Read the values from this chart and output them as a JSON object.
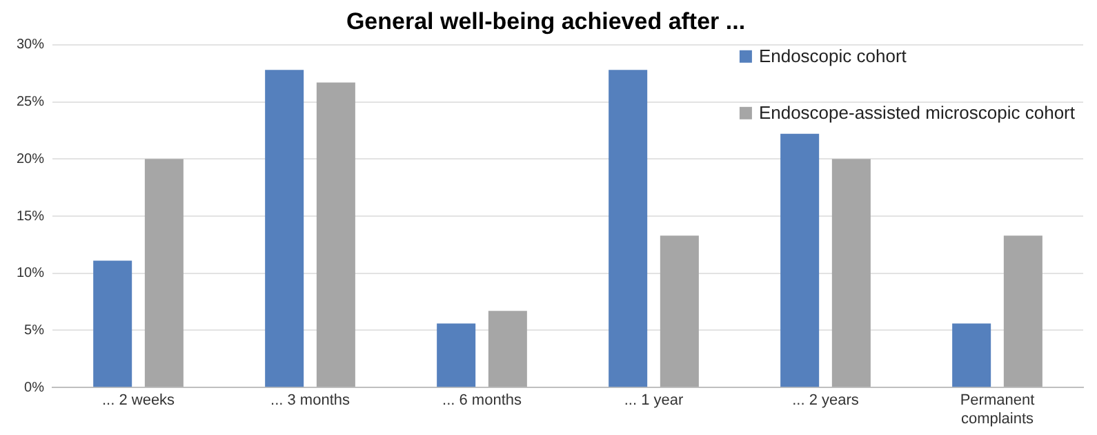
{
  "chart_data": {
    "type": "bar",
    "title": "General well-being achieved after ...",
    "categories": [
      "... 2 weeks",
      "... 3 months",
      "... 6 months",
      "... 1 year",
      "... 2 years",
      "Permanent complaints"
    ],
    "series": [
      {
        "name": "Endoscopic cohort",
        "color": "#5580bd",
        "values": [
          11.1,
          27.8,
          5.6,
          27.8,
          22.2,
          5.6
        ]
      },
      {
        "name": "Endoscope-assisted microscopic cohort",
        "color": "#a6a6a6",
        "values": [
          20,
          26.7,
          6.7,
          13.3,
          20,
          13.3
        ]
      }
    ],
    "ylim": [
      0,
      30
    ],
    "yticks": [
      {
        "value": 0,
        "label": "0%"
      },
      {
        "value": 5,
        "label": "5%"
      },
      {
        "value": 10,
        "label": "10%"
      },
      {
        "value": 15,
        "label": "15%"
      },
      {
        "value": 20,
        "label": "20%"
      },
      {
        "value": 25,
        "label": "25%"
      },
      {
        "value": 30,
        "label": "30%"
      }
    ],
    "grid": "y",
    "legend": "top right"
  }
}
